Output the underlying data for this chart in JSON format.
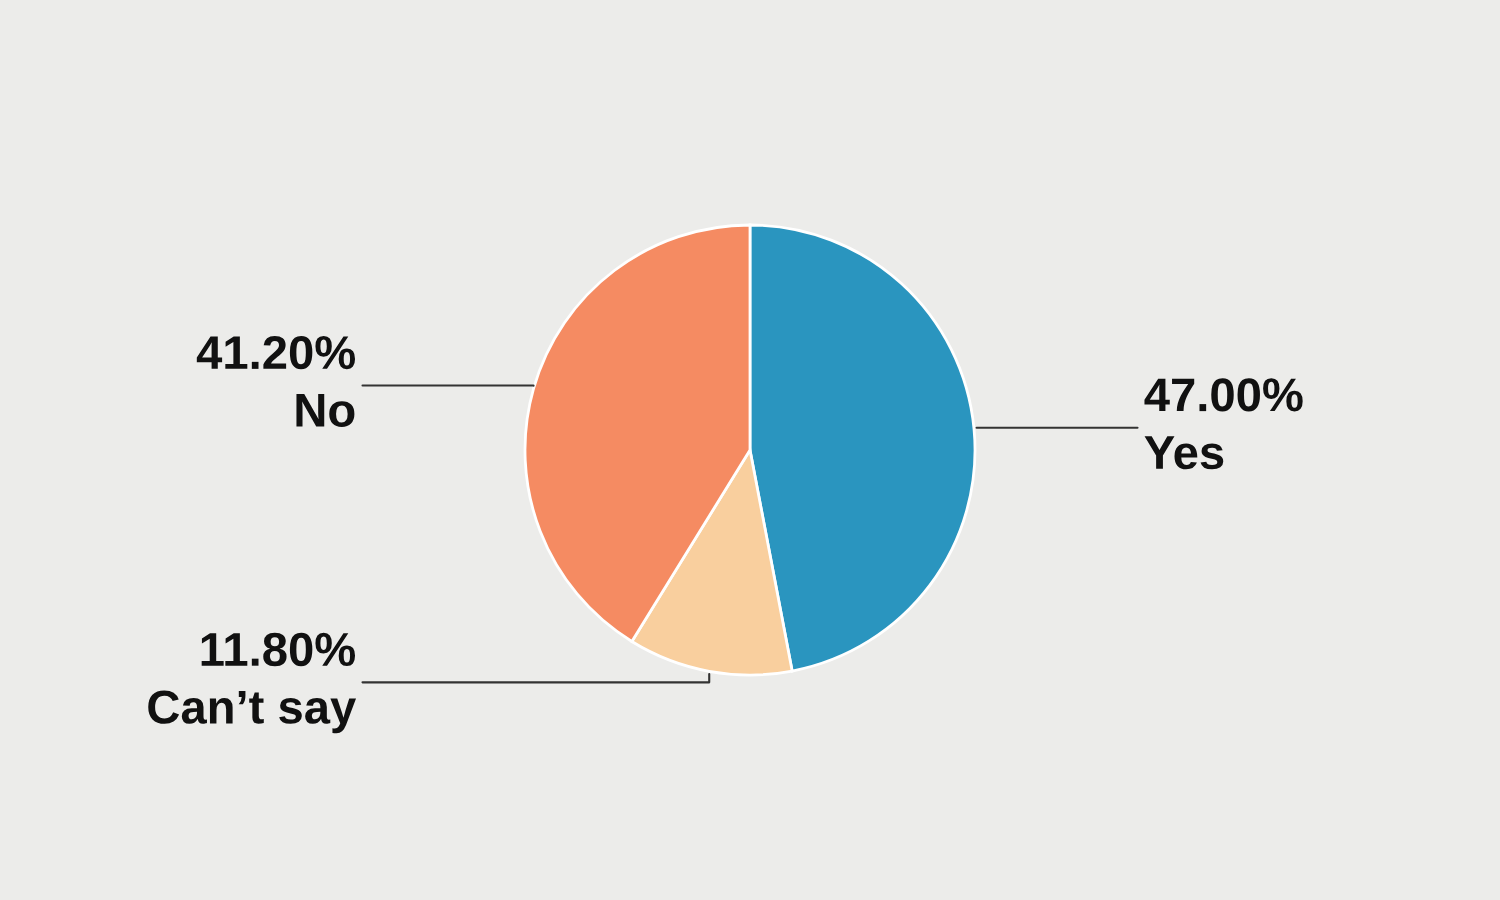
{
  "chart_data": {
    "type": "pie",
    "categories": [
      "Yes",
      "Can’t say",
      "No"
    ],
    "values": [
      47.0,
      11.8,
      41.2
    ],
    "value_labels": [
      "47.00%",
      "11.80%",
      "41.20%"
    ],
    "colors": [
      "#2a95bf",
      "#f9cf9e",
      "#f58b62"
    ]
  }
}
